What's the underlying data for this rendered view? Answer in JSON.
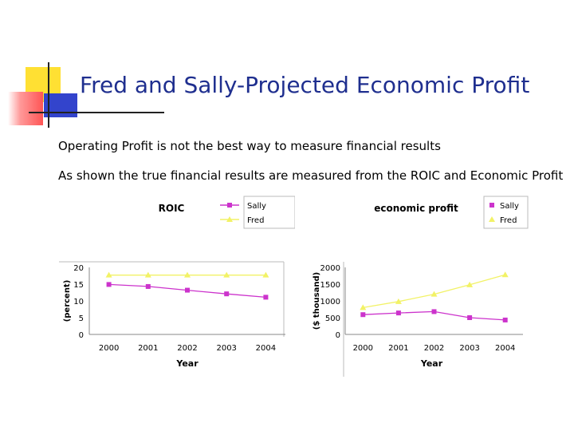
{
  "slide": {
    "title": "Fred and Sally-Projected Economic Profit",
    "bullets": [
      "Operating Profit is not the best way to measure financial results",
      "As shown the true financial results are measured from the ROIC and Economic Profit"
    ]
  },
  "colors": {
    "title": "#1f2f8f",
    "sally": "#cc33cc",
    "fred": "#f2f266",
    "deco_yellow": "#ffe033",
    "deco_blue": "#3344cc",
    "deco_red": "#ff5555"
  },
  "chart_data": [
    {
      "type": "line",
      "title": "ROIC",
      "xlabel": "Year",
      "ylabel": "(percent)",
      "categories": [
        "2000",
        "2001",
        "2002",
        "2003",
        "2004"
      ],
      "ylim": [
        0,
        20
      ],
      "yticks": [
        "0",
        "5",
        "10",
        "15",
        "20"
      ],
      "series": [
        {
          "name": "Sally",
          "values": [
            14.9,
            14.3,
            13.2,
            12.1,
            11.1
          ]
        },
        {
          "name": "Fred",
          "values": [
            17.7,
            17.7,
            17.7,
            17.7,
            17.7
          ]
        }
      ],
      "legend": "top-right"
    },
    {
      "type": "line",
      "title": "economic profit",
      "xlabel": "Year",
      "ylabel": "($ thousand)",
      "categories": [
        "2000",
        "2001",
        "2002",
        "2003",
        "2004"
      ],
      "ylim": [
        0,
        2000
      ],
      "yticks": [
        "0",
        "500",
        "1000",
        "1500",
        "2000"
      ],
      "series": [
        {
          "name": "Sally",
          "values": [
            590,
            640,
            680,
            500,
            430
          ]
        },
        {
          "name": "Fred",
          "values": [
            800,
            980,
            1200,
            1480,
            1780
          ]
        }
      ],
      "legend": "top-right"
    }
  ]
}
